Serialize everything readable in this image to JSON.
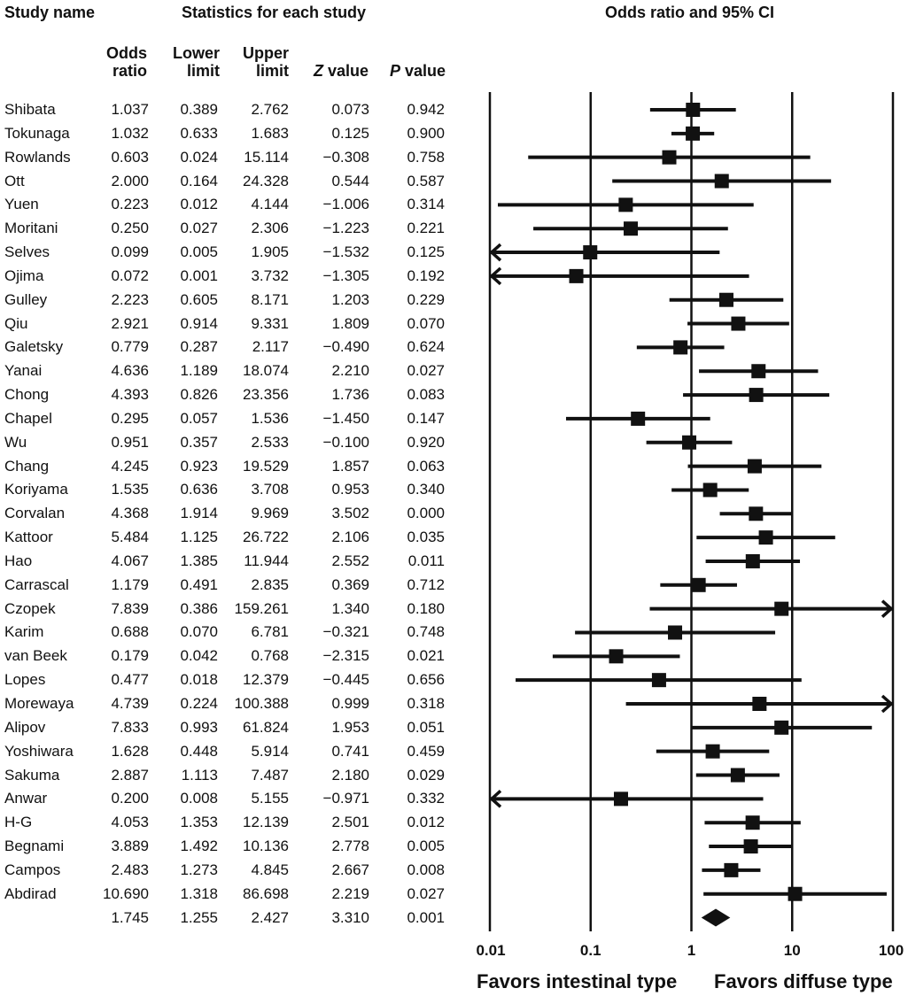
{
  "headers": {
    "study_name": "Study name",
    "statistics": "Statistics for each study",
    "plot_title": "Odds ratio and 95% CI"
  },
  "columns": {
    "odds_l1": "Odds",
    "odds_l2": "ratio",
    "lower_l1": "Lower",
    "lower_l2": "limit",
    "upper_l1": "Upper",
    "upper_l2": "limit",
    "z_italic": "Z",
    "z_rest": " value",
    "p_italic": "P",
    "p_rest": " value"
  },
  "rows": [
    {
      "study": "Shibata",
      "or": "1.037",
      "lower": "0.389",
      "upper": "2.762",
      "z": "0.073",
      "p": "0.942"
    },
    {
      "study": "Tokunaga",
      "or": "1.032",
      "lower": "0.633",
      "upper": "1.683",
      "z": "0.125",
      "p": "0.900"
    },
    {
      "study": "Rowlands",
      "or": "0.603",
      "lower": "0.024",
      "upper": "15.114",
      "z": "−0.308",
      "p": "0.758"
    },
    {
      "study": "Ott",
      "or": "2.000",
      "lower": "0.164",
      "upper": "24.328",
      "z": "0.544",
      "p": "0.587"
    },
    {
      "study": "Yuen",
      "or": "0.223",
      "lower": "0.012",
      "upper": "4.144",
      "z": "−1.006",
      "p": "0.314"
    },
    {
      "study": "Moritani",
      "or": "0.250",
      "lower": "0.027",
      "upper": "2.306",
      "z": "−1.223",
      "p": "0.221"
    },
    {
      "study": "Selves",
      "or": "0.099",
      "lower": "0.005",
      "upper": "1.905",
      "z": "−1.532",
      "p": "0.125"
    },
    {
      "study": "Ojima",
      "or": "0.072",
      "lower": "0.001",
      "upper": "3.732",
      "z": "−1.305",
      "p": "0.192"
    },
    {
      "study": "Gulley",
      "or": "2.223",
      "lower": "0.605",
      "upper": "8.171",
      "z": "1.203",
      "p": "0.229"
    },
    {
      "study": "Qiu",
      "or": "2.921",
      "lower": "0.914",
      "upper": "9.331",
      "z": "1.809",
      "p": "0.070"
    },
    {
      "study": "Galetsky",
      "or": "0.779",
      "lower": "0.287",
      "upper": "2.117",
      "z": "−0.490",
      "p": "0.624"
    },
    {
      "study": "Yanai",
      "or": "4.636",
      "lower": "1.189",
      "upper": "18.074",
      "z": "2.210",
      "p": "0.027"
    },
    {
      "study": "Chong",
      "or": "4.393",
      "lower": "0.826",
      "upper": "23.356",
      "z": "1.736",
      "p": "0.083"
    },
    {
      "study": "Chapel",
      "or": "0.295",
      "lower": "0.057",
      "upper": "1.536",
      "z": "−1.450",
      "p": "0.147"
    },
    {
      "study": "Wu",
      "or": "0.951",
      "lower": "0.357",
      "upper": "2.533",
      "z": "−0.100",
      "p": "0.920"
    },
    {
      "study": "Chang",
      "or": "4.245",
      "lower": "0.923",
      "upper": "19.529",
      "z": "1.857",
      "p": "0.063"
    },
    {
      "study": "Koriyama",
      "or": "1.535",
      "lower": "0.636",
      "upper": "3.708",
      "z": "0.953",
      "p": "0.340"
    },
    {
      "study": "Corvalan",
      "or": "4.368",
      "lower": "1.914",
      "upper": "9.969",
      "z": "3.502",
      "p": "0.000"
    },
    {
      "study": "Kattoor",
      "or": "5.484",
      "lower": "1.125",
      "upper": "26.722",
      "z": "2.106",
      "p": "0.035"
    },
    {
      "study": "Hao",
      "or": "4.067",
      "lower": "1.385",
      "upper": "11.944",
      "z": "2.552",
      "p": "0.011"
    },
    {
      "study": "Carrascal",
      "or": "1.179",
      "lower": "0.491",
      "upper": "2.835",
      "z": "0.369",
      "p": "0.712"
    },
    {
      "study": "Czopek",
      "or": "7.839",
      "lower": "0.386",
      "upper": "159.261",
      "z": "1.340",
      "p": "0.180"
    },
    {
      "study": "Karim",
      "or": "0.688",
      "lower": "0.070",
      "upper": "6.781",
      "z": "−0.321",
      "p": "0.748"
    },
    {
      "study": "van Beek",
      "or": "0.179",
      "lower": "0.042",
      "upper": "0.768",
      "z": "−2.315",
      "p": "0.021"
    },
    {
      "study": "Lopes",
      "or": "0.477",
      "lower": "0.018",
      "upper": "12.379",
      "z": "−0.445",
      "p": "0.656"
    },
    {
      "study": "Morewaya",
      "or": "4.739",
      "lower": "0.224",
      "upper": "100.388",
      "z": "0.999",
      "p": "0.318"
    },
    {
      "study": "Alipov",
      "or": "7.833",
      "lower": "0.993",
      "upper": "61.824",
      "z": "1.953",
      "p": "0.051"
    },
    {
      "study": "Yoshiwara",
      "or": "1.628",
      "lower": "0.448",
      "upper": "5.914",
      "z": "0.741",
      "p": "0.459"
    },
    {
      "study": "Sakuma",
      "or": "2.887",
      "lower": "1.113",
      "upper": "7.487",
      "z": "2.180",
      "p": "0.029"
    },
    {
      "study": "Anwar",
      "or": "0.200",
      "lower": "0.008",
      "upper": "5.155",
      "z": "−0.971",
      "p": "0.332"
    },
    {
      "study": "H-G",
      "or": "4.053",
      "lower": "1.353",
      "upper": "12.139",
      "z": "2.501",
      "p": "0.012"
    },
    {
      "study": "Begnami",
      "or": "3.889",
      "lower": "1.492",
      "upper": "10.136",
      "z": "2.778",
      "p": "0.005"
    },
    {
      "study": "Campos",
      "or": "2.483",
      "lower": "1.273",
      "upper": "4.845",
      "z": "2.667",
      "p": "0.008"
    },
    {
      "study": "Abdirad",
      "or": "10.690",
      "lower": "1.318",
      "upper": "86.698",
      "z": "2.219",
      "p": "0.027"
    }
  ],
  "summary": {
    "or": "1.745",
    "lower": "1.255",
    "upper": "2.427",
    "z": "3.310",
    "p": "0.001"
  },
  "chart_data": {
    "type": "forest",
    "x_scale": "log",
    "xlim": [
      0.01,
      100
    ],
    "x_ticks": [
      "0.01",
      "0.1",
      "1",
      "10",
      "100"
    ],
    "x_tick_values": [
      0.01,
      0.1,
      1,
      10,
      100
    ],
    "title": "Odds ratio and 95% CI",
    "left_label": "Favors intestinal type",
    "right_label": "Favors diffuse type",
    "grid": "vertical lines at ticks",
    "marker_color": "#111111"
  }
}
